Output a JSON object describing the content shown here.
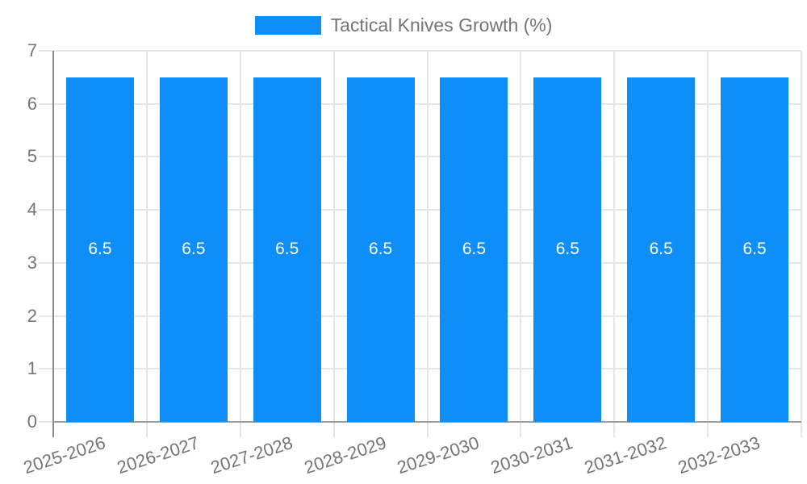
{
  "legend": {
    "label": "Tactical Knives Growth (%)"
  },
  "chart_data": {
    "type": "bar",
    "title": "Tactical Knives Growth (%)",
    "categories": [
      "2025-2026",
      "2026-2027",
      "2027-2028",
      "2028-2029",
      "2029-2030",
      "2030-2031",
      "2031-2032",
      "2032-2033"
    ],
    "series": [
      {
        "name": "Tactical Knives Growth (%)",
        "values": [
          6.5,
          6.5,
          6.5,
          6.5,
          6.5,
          6.5,
          6.5,
          6.5
        ]
      }
    ],
    "value_labels": [
      "6.5",
      "6.5",
      "6.5",
      "6.5",
      "6.5",
      "6.5",
      "6.5",
      "6.5"
    ],
    "xlabel": "",
    "ylabel": "",
    "ylim": [
      0,
      7
    ],
    "yticks": [
      0,
      1,
      2,
      3,
      4,
      5,
      6,
      7
    ],
    "grid": true,
    "legend_position": "top",
    "colors": {
      "bar": "#0d8ef8",
      "value_label": "#ffffff",
      "axis_text": "#757575",
      "gridline": "#e6e6e6",
      "y_axis_line": "#8a8a8a",
      "x_axis_line": "#9e9e9e"
    }
  }
}
